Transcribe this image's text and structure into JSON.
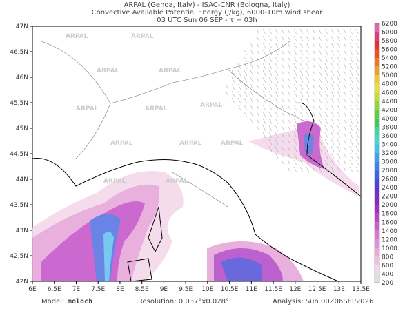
{
  "header": {
    "lines": [
      "ARPAL (Genoa, Italy)  -  ISAC-CNR (Bologna, Italy)",
      "Convective Available Potential Energy (J/kg), 6000-10m wind shear",
      "03 UTC Sun 06 SEP  -  τ = 03h"
    ]
  },
  "map": {
    "lon_ticks": [
      "6E",
      "6.5E",
      "7E",
      "7.5E",
      "8E",
      "8.5E",
      "9E",
      "9.5E",
      "10E",
      "10.5E",
      "11E",
      "11.5E",
      "12E",
      "12.5E",
      "13E",
      "13.5E"
    ],
    "lat_ticks": [
      "47N",
      "46.5N",
      "46N",
      "45.5N",
      "45N",
      "44.5N",
      "44N",
      "43.5N",
      "43N",
      "42.5N",
      "42N"
    ],
    "watermark": "ARPAL"
  },
  "colorbar": {
    "labels": [
      "200",
      "400",
      "600",
      "800",
      "1000",
      "1200",
      "1400",
      "1600",
      "1800",
      "2000",
      "2200",
      "2400",
      "2600",
      "2800",
      "3000",
      "3200",
      "3400",
      "3600",
      "3800",
      "4000",
      "4200",
      "4400",
      "4600",
      "4800",
      "5000",
      "5200",
      "5400",
      "5600",
      "5800",
      "6000",
      "6200"
    ]
  },
  "footer": {
    "model_label": "Model:",
    "model": "moloch",
    "resolution": "Resolution: 0.037°x0.028°",
    "analysis": "Analysis: Sun 00Z06SEP2026"
  }
}
